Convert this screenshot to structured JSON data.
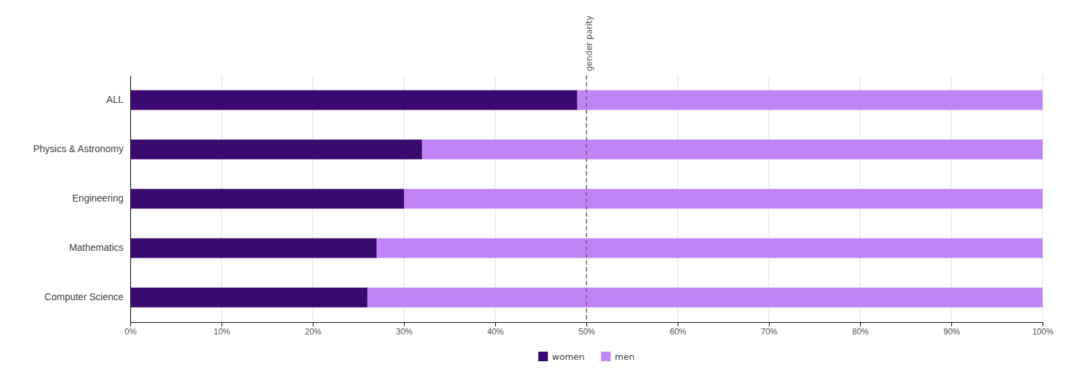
{
  "chart_data": {
    "type": "bar",
    "orientation": "horizontal",
    "stacked": true,
    "categories": [
      "ALL",
      "Physics & Astronomy",
      "Engineering",
      "Mathematics",
      "Computer Science"
    ],
    "series": [
      {
        "name": "women",
        "color": "#3b0a6e",
        "values": [
          49,
          32,
          30,
          27,
          26
        ]
      },
      {
        "name": "men",
        "color": "#c084f5",
        "values": [
          51,
          68,
          70,
          73,
          74
        ]
      }
    ],
    "xlim": [
      0,
      100
    ],
    "xticks": [
      {
        "value": 0,
        "label": "0%"
      },
      {
        "value": 10,
        "label": "10%"
      },
      {
        "value": 20,
        "label": "20%"
      },
      {
        "value": 30,
        "label": "30%"
      },
      {
        "value": 40,
        "label": "40%"
      },
      {
        "value": 50,
        "label": "50%"
      },
      {
        "value": 60,
        "label": "60%"
      },
      {
        "value": 70,
        "label": "70%"
      },
      {
        "value": 80,
        "label": "80%"
      },
      {
        "value": 90,
        "label": "90%"
      },
      {
        "value": 100,
        "label": "100%"
      }
    ],
    "grid": true,
    "legend": "bottom",
    "annotations": [
      {
        "text": "gender parity",
        "x": 50,
        "line_style": "dashed"
      }
    ]
  }
}
